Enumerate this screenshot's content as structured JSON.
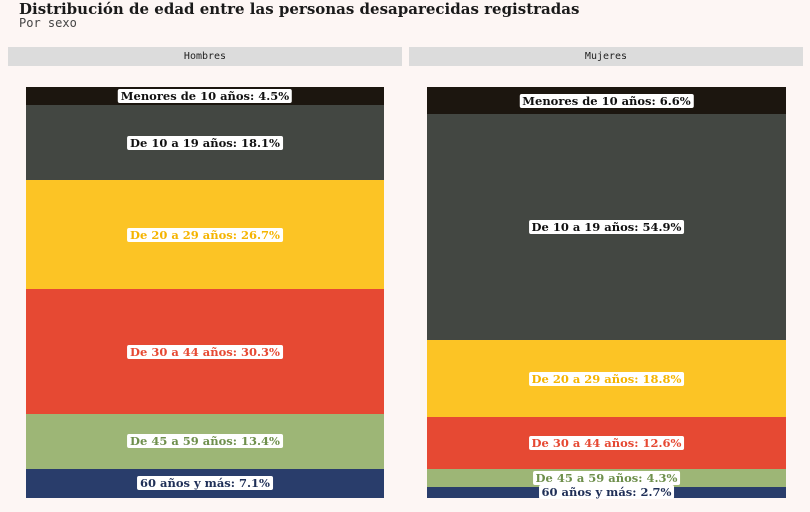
{
  "title": "Distribución de edad entre las personas desaparecidas registradas",
  "subtitle": "Por sexo",
  "chart_data": {
    "type": "bar",
    "stacked": true,
    "unit": "%",
    "categories": [
      "Menores de 10 años",
      "De 10 a 19 años",
      "De 20 a 29 años",
      "De 30 a 44 años",
      "De 45 a 59 años",
      "60 años y más"
    ],
    "colors": [
      "#1c160f",
      "#434742",
      "#fcc425",
      "#e64933",
      "#9db676",
      "#293d6b"
    ],
    "label_colors": [
      "#111111",
      "#111111",
      "#f5b400",
      "#e64933",
      "#6e8f4c",
      "#1f2f57"
    ],
    "series": [
      {
        "name": "Hombres",
        "values": [
          4.5,
          18.1,
          26.7,
          30.3,
          13.4,
          7.1
        ]
      },
      {
        "name": "Mujeres",
        "values": [
          6.6,
          54.9,
          18.8,
          12.6,
          4.3,
          2.7
        ]
      }
    ]
  }
}
